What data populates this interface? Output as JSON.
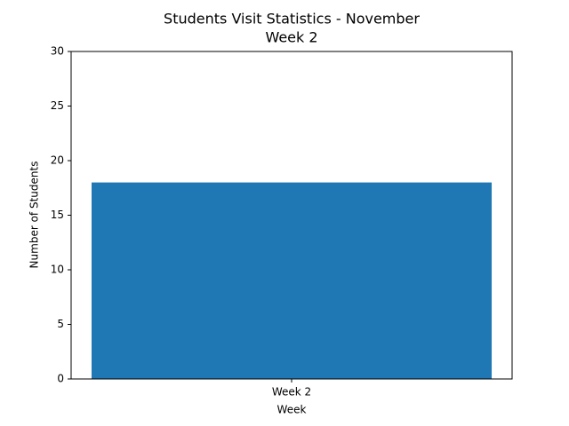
{
  "chart_data": {
    "type": "bar",
    "title": [
      "Students Visit Statistics - November",
      "Week 2"
    ],
    "x_label": "Week",
    "y_label": "Number of Students",
    "categories": [
      "Week 2"
    ],
    "values": [
      18
    ],
    "color": "#1f77b4",
    "ylim": [
      0,
      30
    ],
    "yticks": [
      0,
      5,
      10,
      15,
      20,
      25,
      30
    ],
    "grid": false
  }
}
